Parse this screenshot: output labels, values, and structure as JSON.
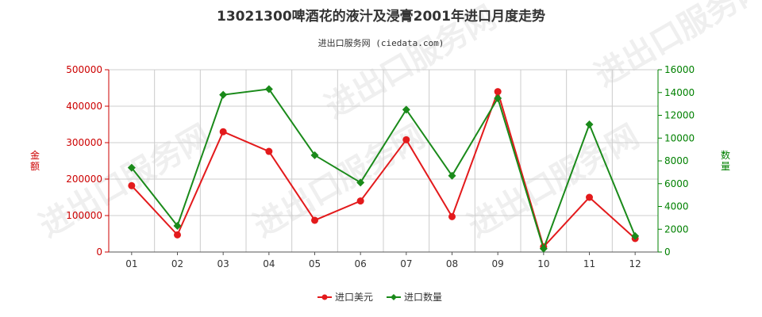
{
  "chart_data": {
    "type": "line",
    "title": "13021300啤酒花的液汁及浸膏2001年进口月度走势",
    "subtitle": "进出口服务网 (ciedata.com)",
    "categories": [
      "01",
      "02",
      "03",
      "04",
      "05",
      "06",
      "07",
      "08",
      "09",
      "10",
      "11",
      "12"
    ],
    "y_left": {
      "label": "金额",
      "ticks": [
        "0",
        "100000",
        "200000",
        "300000",
        "400000",
        "500000"
      ],
      "range": [
        0,
        500000
      ],
      "color": "#cc0000"
    },
    "y_right": {
      "label": "数量",
      "ticks": [
        "0",
        "2000",
        "4000",
        "6000",
        "8000",
        "10000",
        "12000",
        "14000",
        "16000"
      ],
      "range": [
        0,
        16000
      ],
      "color": "#008000"
    },
    "series": [
      {
        "name": "进口美元",
        "axis": "left",
        "color": "#e31a1c",
        "marker": "circle",
        "values": [
          182000,
          47000,
          330000,
          276000,
          87000,
          140000,
          308000,
          97000,
          440000,
          14000,
          150000,
          37000
        ]
      },
      {
        "name": "进口数量",
        "axis": "right",
        "color": "#1a8a1a",
        "marker": "diamond",
        "values": [
          7400,
          2300,
          13800,
          14300,
          8500,
          6100,
          12500,
          6700,
          13500,
          300,
          11200,
          1400
        ]
      }
    ],
    "grid": true,
    "legend_position": "bottom-center",
    "watermark": "进出口服务网"
  }
}
